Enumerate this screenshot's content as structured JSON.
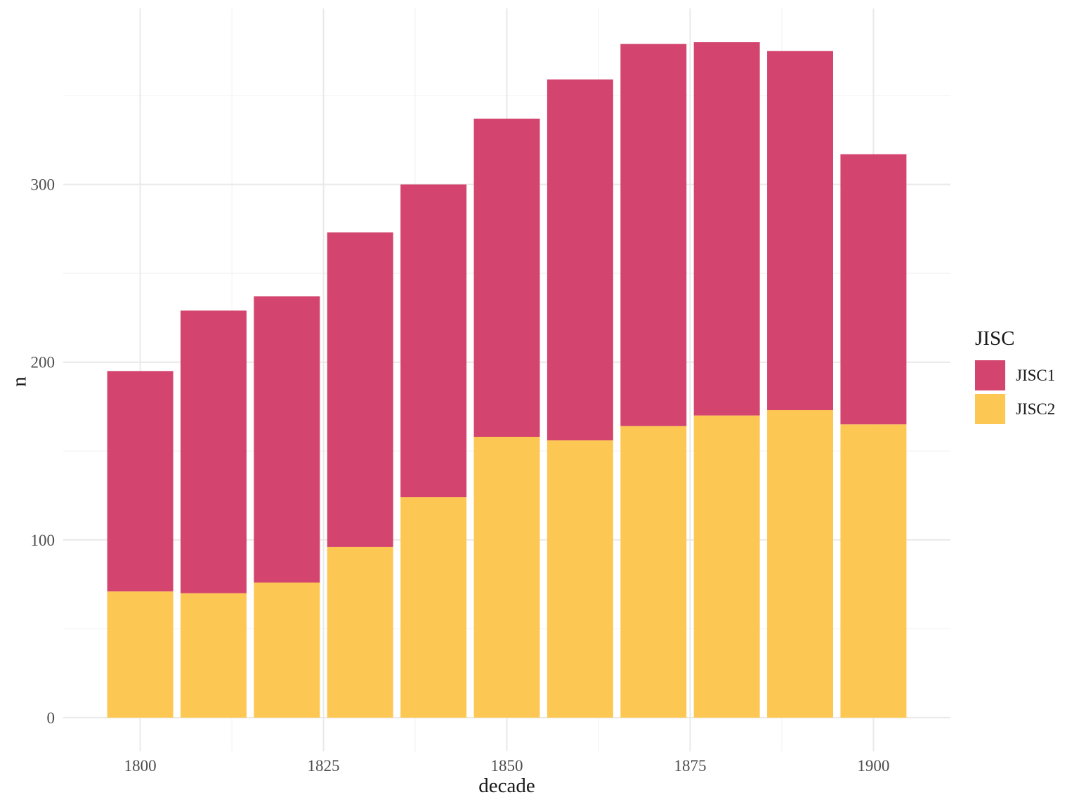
{
  "chart_data": {
    "type": "bar",
    "stacked": true,
    "title": "",
    "xlabel": "decade",
    "ylabel": "n",
    "categories": [
      1800,
      1810,
      1820,
      1830,
      1840,
      1850,
      1860,
      1870,
      1880,
      1890,
      1900
    ],
    "series": [
      {
        "name": "JISC2",
        "color": "#FDC753",
        "values": [
          71,
          70,
          76,
          96,
          124,
          158,
          156,
          164,
          170,
          173,
          165
        ]
      },
      {
        "name": "JISC1",
        "color": "#D3456E",
        "values": [
          124,
          159,
          161,
          177,
          176,
          179,
          203,
          215,
          210,
          202,
          152
        ]
      }
    ],
    "totals": [
      195,
      229,
      237,
      273,
      300,
      337,
      359,
      379,
      380,
      375,
      317
    ],
    "bar_width_years": 9,
    "xlim": [
      1789.5,
      1910.5
    ],
    "ylim": [
      -19,
      399
    ],
    "x_ticks": [
      1800,
      1825,
      1850,
      1875,
      1900
    ],
    "x_tick_labels": [
      "1800",
      "1825",
      "1850",
      "1875",
      "1900"
    ],
    "y_ticks": [
      0,
      100,
      200,
      300
    ],
    "y_tick_labels": [
      "0",
      "100",
      "200",
      "300"
    ],
    "x_minor_ticks": [
      1812.5,
      1837.5,
      1862.5,
      1887.5
    ],
    "y_minor_ticks": [
      50,
      150,
      250,
      350
    ],
    "grid": {
      "on": true,
      "major_color": "#E9E9E9",
      "minor_color": "#F3F3F3",
      "background": "#FFFFFF"
    },
    "tick_label_color": "#4D4D4D",
    "legend": {
      "title": "JISC",
      "position": "right",
      "entries": [
        {
          "label": "JISC1",
          "color": "#D3456E"
        },
        {
          "label": "JISC2",
          "color": "#FDC753"
        }
      ]
    }
  }
}
